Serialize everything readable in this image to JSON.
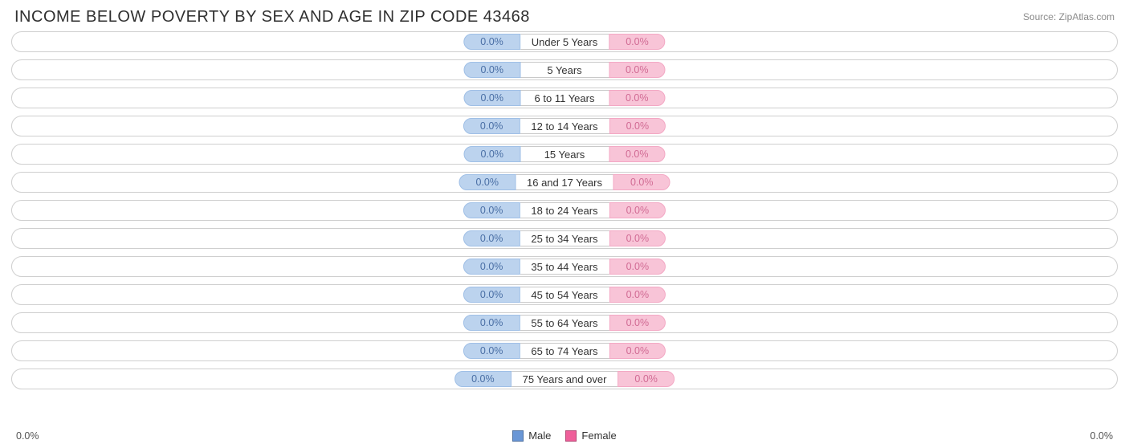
{
  "header": {
    "title": "INCOME BELOW POVERTY BY SEX AND AGE IN ZIP CODE 43468",
    "source": "Source: ZipAtlas.com"
  },
  "chart": {
    "type": "diverging-bar",
    "male_color_bg": "#bcd3ee",
    "male_color_border": "#9fbfe6",
    "male_text_color": "#4a6fa5",
    "female_color_bg": "#f8c4d7",
    "female_color_border": "#f3a8c4",
    "female_text_color": "#d16b94",
    "row_border_color": "#cfcfcf",
    "background_color": "#ffffff",
    "categories": [
      {
        "label": "Under 5 Years",
        "male_pct": "0.0%",
        "female_pct": "0.0%"
      },
      {
        "label": "5 Years",
        "male_pct": "0.0%",
        "female_pct": "0.0%"
      },
      {
        "label": "6 to 11 Years",
        "male_pct": "0.0%",
        "female_pct": "0.0%"
      },
      {
        "label": "12 to 14 Years",
        "male_pct": "0.0%",
        "female_pct": "0.0%"
      },
      {
        "label": "15 Years",
        "male_pct": "0.0%",
        "female_pct": "0.0%"
      },
      {
        "label": "16 and 17 Years",
        "male_pct": "0.0%",
        "female_pct": "0.0%"
      },
      {
        "label": "18 to 24 Years",
        "male_pct": "0.0%",
        "female_pct": "0.0%"
      },
      {
        "label": "25 to 34 Years",
        "male_pct": "0.0%",
        "female_pct": "0.0%"
      },
      {
        "label": "35 to 44 Years",
        "male_pct": "0.0%",
        "female_pct": "0.0%"
      },
      {
        "label": "45 to 54 Years",
        "male_pct": "0.0%",
        "female_pct": "0.0%"
      },
      {
        "label": "55 to 64 Years",
        "male_pct": "0.0%",
        "female_pct": "0.0%"
      },
      {
        "label": "65 to 74 Years",
        "male_pct": "0.0%",
        "female_pct": "0.0%"
      },
      {
        "label": "75 Years and over",
        "male_pct": "0.0%",
        "female_pct": "0.0%"
      }
    ],
    "axis": {
      "left_label": "0.0%",
      "right_label": "0.0%"
    },
    "legend": {
      "male_label": "Male",
      "female_label": "Female",
      "male_swatch": "#6a97d6",
      "female_swatch": "#ef5f9a"
    }
  }
}
